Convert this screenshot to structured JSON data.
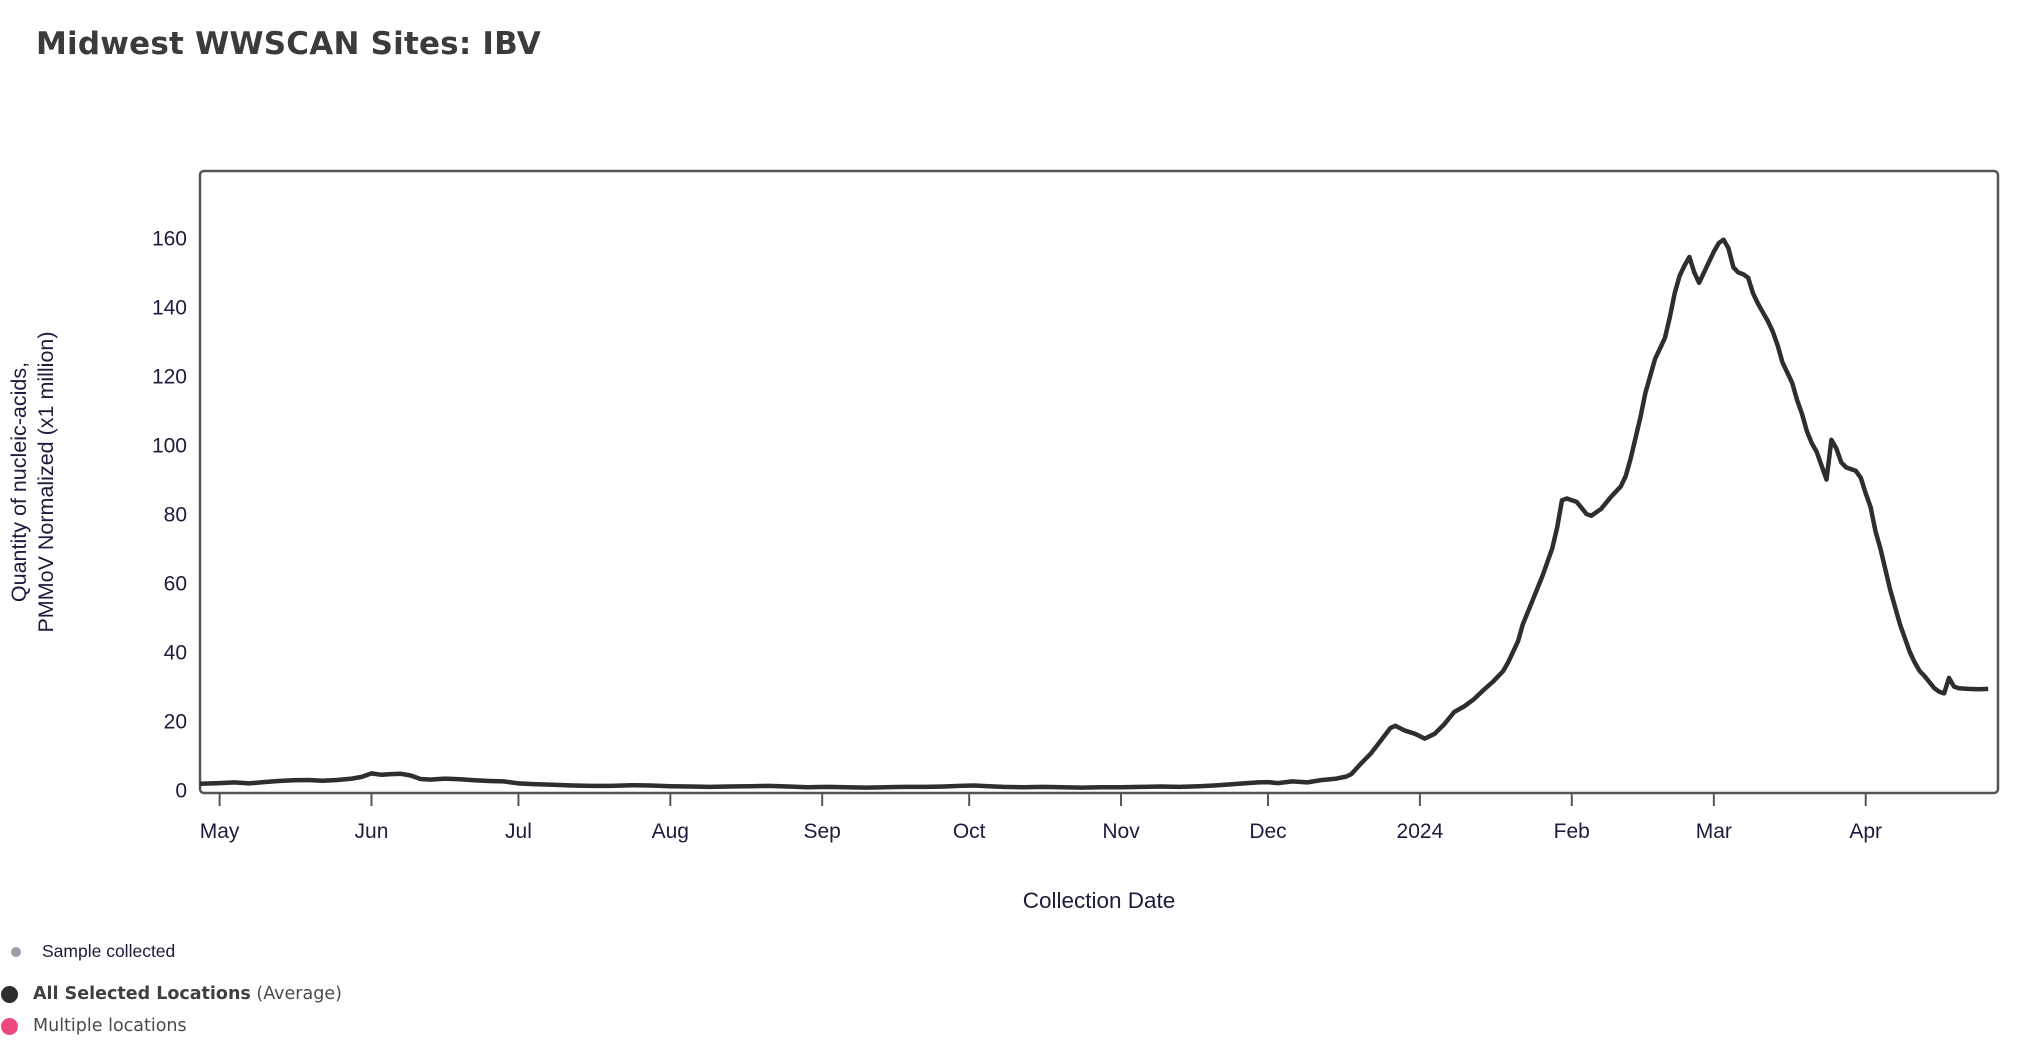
{
  "title": "Midwest WWSCAN Sites: IBV",
  "colors": {
    "line": "#2e2e2e",
    "axis_text": "#1c1c3c",
    "frame": "#545454",
    "title_text": "#3b3b3b",
    "legend_text": "#4b4b4b",
    "sample_dot": "#98a1ac",
    "average_dot": "#2e2e2e",
    "multiple_locations_dot": "#ec4a7d"
  },
  "legend": {
    "items": [
      {
        "label": "Sample collected",
        "dot_color": "#98a1ac",
        "dot_size": "small"
      },
      {
        "label_bold": "All Selected Locations",
        "label_normal": " (Average)",
        "dot_color": "#2e2e2e",
        "dot_size": "large"
      },
      {
        "label": "Multiple locations",
        "dot_color": "#ec4a7d",
        "dot_size": "large"
      }
    ]
  },
  "chart_data": {
    "type": "line",
    "title": "Midwest WWSCAN Sites: IBV",
    "xlabel": "Collection Date",
    "ylabel_lines": [
      "Quantity of nucleic-acids,",
      "PMMoV Normalized (x1 million)"
    ],
    "ylim": [
      0,
      170
    ],
    "y_ticks": [
      0,
      20,
      40,
      60,
      80,
      100,
      120,
      140,
      160
    ],
    "grid": false,
    "legend_position": "bottom-left",
    "x_axis_unit": "days since 2023-05-01",
    "x_range_days": [
      -4,
      363
    ],
    "x_ticks": [
      {
        "label": "May",
        "day": 0
      },
      {
        "label": "Jun",
        "day": 31
      },
      {
        "label": "Jul",
        "day": 61
      },
      {
        "label": "Aug",
        "day": 92
      },
      {
        "label": "Sep",
        "day": 123
      },
      {
        "label": "Oct",
        "day": 153
      },
      {
        "label": "Nov",
        "day": 184
      },
      {
        "label": "Dec",
        "day": 214
      },
      {
        "label": "2024",
        "day": 245
      },
      {
        "label": "Feb",
        "day": 276
      },
      {
        "label": "Mar",
        "day": 305
      },
      {
        "label": "Apr",
        "day": 336
      }
    ],
    "series": [
      {
        "name": "All Selected Locations (Average)",
        "color": "#2e2e2e",
        "points": [
          [
            -4,
            1.8
          ],
          [
            0,
            2.0
          ],
          [
            3,
            2.2
          ],
          [
            6,
            1.9
          ],
          [
            9,
            2.3
          ],
          [
            12,
            2.6
          ],
          [
            15,
            2.8
          ],
          [
            18,
            2.9
          ],
          [
            21,
            2.7
          ],
          [
            24,
            2.9
          ],
          [
            27,
            3.3
          ],
          [
            29,
            3.8
          ],
          [
            31,
            4.8
          ],
          [
            33,
            4.4
          ],
          [
            35,
            4.6
          ],
          [
            37,
            4.7
          ],
          [
            39,
            4.2
          ],
          [
            41,
            3.2
          ],
          [
            43,
            3.0
          ],
          [
            46,
            3.3
          ],
          [
            49,
            3.1
          ],
          [
            52,
            2.8
          ],
          [
            55,
            2.6
          ],
          [
            58,
            2.5
          ],
          [
            61,
            1.9
          ],
          [
            64,
            1.7
          ],
          [
            68,
            1.5
          ],
          [
            72,
            1.3
          ],
          [
            76,
            1.2
          ],
          [
            80,
            1.2
          ],
          [
            84,
            1.4
          ],
          [
            88,
            1.3
          ],
          [
            92,
            1.1
          ],
          [
            96,
            1.0
          ],
          [
            100,
            0.9
          ],
          [
            104,
            1.0
          ],
          [
            108,
            1.1
          ],
          [
            112,
            1.2
          ],
          [
            116,
            1.0
          ],
          [
            120,
            0.8
          ],
          [
            124,
            0.9
          ],
          [
            128,
            0.8
          ],
          [
            132,
            0.7
          ],
          [
            136,
            0.8
          ],
          [
            140,
            0.9
          ],
          [
            144,
            0.9
          ],
          [
            148,
            1.0
          ],
          [
            151,
            1.2
          ],
          [
            154,
            1.3
          ],
          [
            157,
            1.1
          ],
          [
            160,
            0.9
          ],
          [
            164,
            0.8
          ],
          [
            168,
            0.9
          ],
          [
            172,
            0.8
          ],
          [
            176,
            0.7
          ],
          [
            180,
            0.8
          ],
          [
            184,
            0.8
          ],
          [
            188,
            0.9
          ],
          [
            192,
            1.0
          ],
          [
            196,
            0.9
          ],
          [
            200,
            1.1
          ],
          [
            203,
            1.3
          ],
          [
            206,
            1.6
          ],
          [
            209,
            1.9
          ],
          [
            212,
            2.2
          ],
          [
            214,
            2.3
          ],
          [
            216,
            2.0
          ],
          [
            219,
            2.5
          ],
          [
            222,
            2.2
          ],
          [
            225,
            2.9
          ],
          [
            228,
            3.3
          ],
          [
            230,
            3.9
          ],
          [
            231,
            4.6
          ],
          [
            233,
            7.7
          ],
          [
            235,
            10.6
          ],
          [
            237,
            14.3
          ],
          [
            239,
            18.0
          ],
          [
            240,
            18.6
          ],
          [
            242,
            17.2
          ],
          [
            244,
            16.3
          ],
          [
            246,
            14.9
          ],
          [
            248,
            16.3
          ],
          [
            250,
            19.1
          ],
          [
            252,
            22.6
          ],
          [
            254,
            24.2
          ],
          [
            256,
            26.3
          ],
          [
            258,
            29.0
          ],
          [
            260,
            31.5
          ],
          [
            262,
            34.5
          ],
          [
            263,
            37.0
          ],
          [
            265,
            43.0
          ],
          [
            266,
            48.0
          ],
          [
            268,
            55.0
          ],
          [
            270,
            62.0
          ],
          [
            271,
            66.0
          ],
          [
            272,
            70.0
          ],
          [
            273,
            76.0
          ],
          [
            274,
            84.0
          ],
          [
            275,
            84.5
          ],
          [
            276,
            84.0
          ],
          [
            277,
            83.5
          ],
          [
            279,
            80.0
          ],
          [
            280,
            79.5
          ],
          [
            282,
            81.5
          ],
          [
            284,
            85.0
          ],
          [
            286,
            88.0
          ],
          [
            287,
            91.0
          ],
          [
            288,
            96.0
          ],
          [
            290,
            108.0
          ],
          [
            291,
            115.0
          ],
          [
            292,
            120.0
          ],
          [
            293,
            125.0
          ],
          [
            294,
            128.0
          ],
          [
            295,
            131.0
          ],
          [
            296,
            137.0
          ],
          [
            297,
            144.0
          ],
          [
            298,
            149.0
          ],
          [
            299,
            152.0
          ],
          [
            300,
            154.5
          ],
          [
            301,
            150.0
          ],
          [
            302,
            147.0
          ],
          [
            303,
            150.0
          ],
          [
            304,
            153.0
          ],
          [
            305,
            156.0
          ],
          [
            306,
            158.5
          ],
          [
            307,
            159.5
          ],
          [
            308,
            157.0
          ],
          [
            309,
            151.5
          ],
          [
            310,
            150.0
          ],
          [
            311,
            149.5
          ],
          [
            312,
            148.5
          ],
          [
            313,
            144.0
          ],
          [
            314,
            141.0
          ],
          [
            315,
            138.5
          ],
          [
            316,
            136.0
          ],
          [
            317,
            133.0
          ],
          [
            318,
            129.0
          ],
          [
            319,
            124.0
          ],
          [
            320,
            121.0
          ],
          [
            321,
            118.0
          ],
          [
            322,
            113.0
          ],
          [
            323,
            109.0
          ],
          [
            324,
            104.0
          ],
          [
            325,
            100.5
          ],
          [
            326,
            98.0
          ],
          [
            327,
            94.0
          ],
          [
            328,
            90.0
          ],
          [
            329,
            101.5
          ],
          [
            330,
            99.0
          ],
          [
            331,
            95.0
          ],
          [
            332,
            93.5
          ],
          [
            333,
            93.0
          ],
          [
            334,
            92.5
          ],
          [
            335,
            90.5
          ],
          [
            336,
            86.0
          ],
          [
            337,
            82.0
          ],
          [
            338,
            75.0
          ],
          [
            339,
            70.0
          ],
          [
            340,
            64.0
          ],
          [
            341,
            58.0
          ],
          [
            342,
            53.0
          ],
          [
            343,
            48.0
          ],
          [
            344,
            44.0
          ],
          [
            345,
            40.0
          ],
          [
            346,
            37.0
          ],
          [
            347,
            34.5
          ],
          [
            348,
            33.0
          ],
          [
            350,
            29.5
          ],
          [
            351,
            28.5
          ],
          [
            352,
            28.0
          ],
          [
            353,
            32.5
          ],
          [
            354,
            30.0
          ],
          [
            355,
            29.5
          ],
          [
            357,
            29.3
          ],
          [
            359,
            29.2
          ],
          [
            361,
            29.3
          ]
        ]
      }
    ]
  }
}
